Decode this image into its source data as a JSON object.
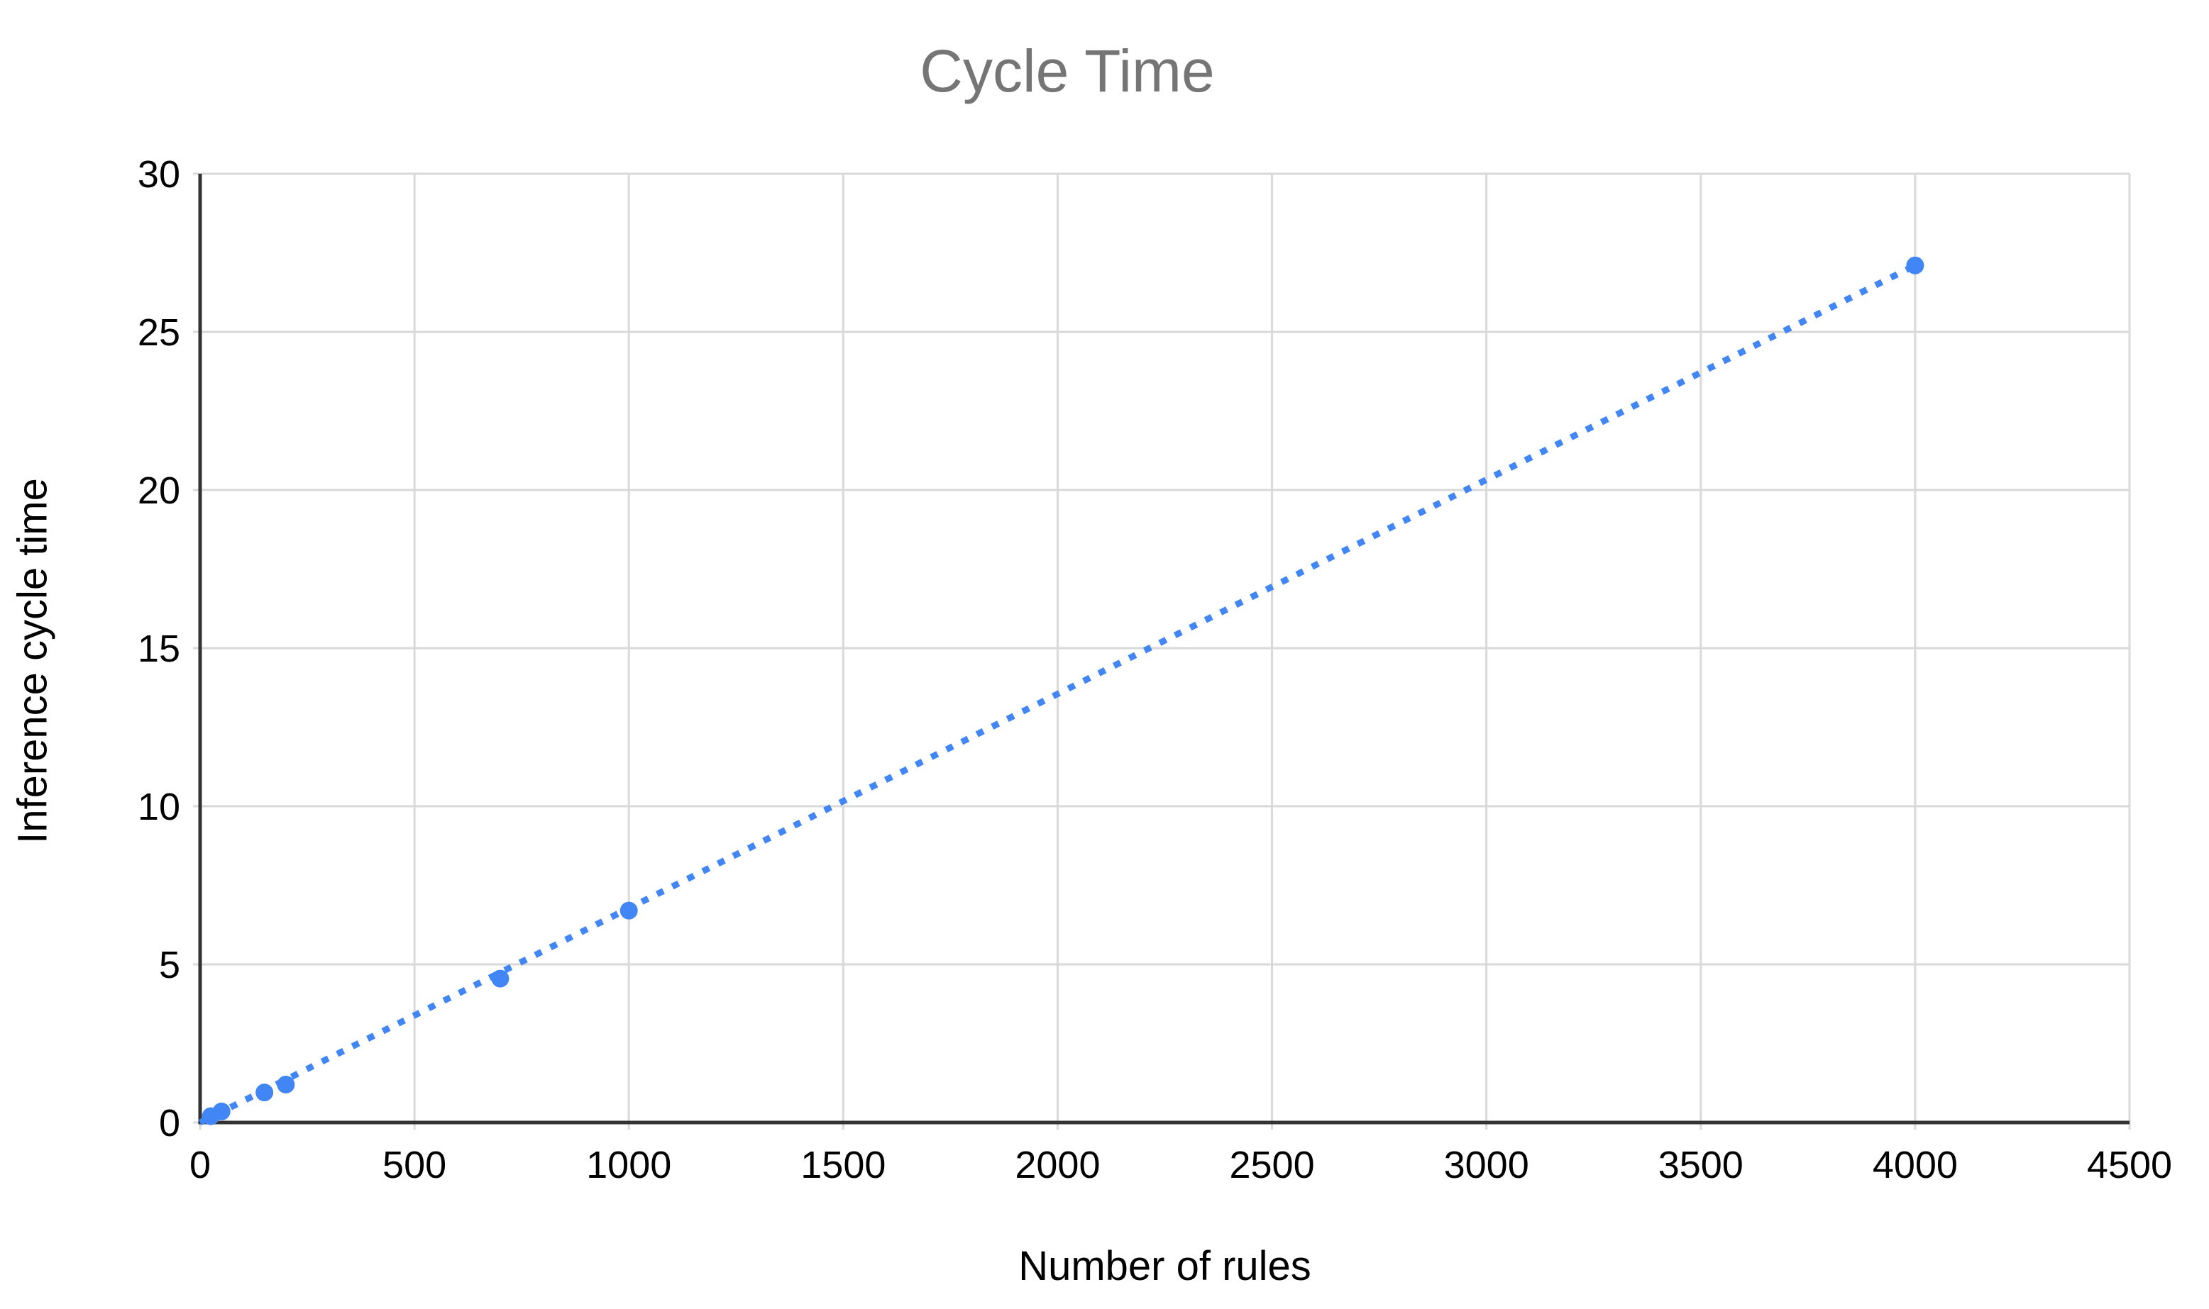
{
  "chart_data": {
    "type": "scatter",
    "title": "Cycle Time",
    "xlabel": "Number of rules",
    "ylabel": "Inference cycle time",
    "xlim": [
      0,
      4500
    ],
    "ylim": [
      0,
      30
    ],
    "x_ticks": [
      0,
      500,
      1000,
      1500,
      2000,
      2500,
      3000,
      3500,
      4000,
      4500
    ],
    "y_ticks": [
      0,
      5,
      10,
      15,
      20,
      25,
      30
    ],
    "grid": true,
    "legend": false,
    "points": [
      {
        "x": 25,
        "y": 0.2
      },
      {
        "x": 50,
        "y": 0.35
      },
      {
        "x": 150,
        "y": 0.95
      },
      {
        "x": 200,
        "y": 1.2
      },
      {
        "x": 700,
        "y": 4.55
      },
      {
        "x": 1000,
        "y": 6.7
      },
      {
        "x": 4000,
        "y": 27.1
      }
    ],
    "trendline": {
      "style": "dotted",
      "from": {
        "x": 0,
        "y": 0
      },
      "to": {
        "x": 4000,
        "y": 27.1
      }
    },
    "colors": {
      "series": "#4285f4",
      "gridline": "#d9d9d9",
      "axis_line": "#333333",
      "title": "#757575",
      "tick_label": "#000000",
      "axis_title": "#000000",
      "background": "#ffffff"
    }
  }
}
